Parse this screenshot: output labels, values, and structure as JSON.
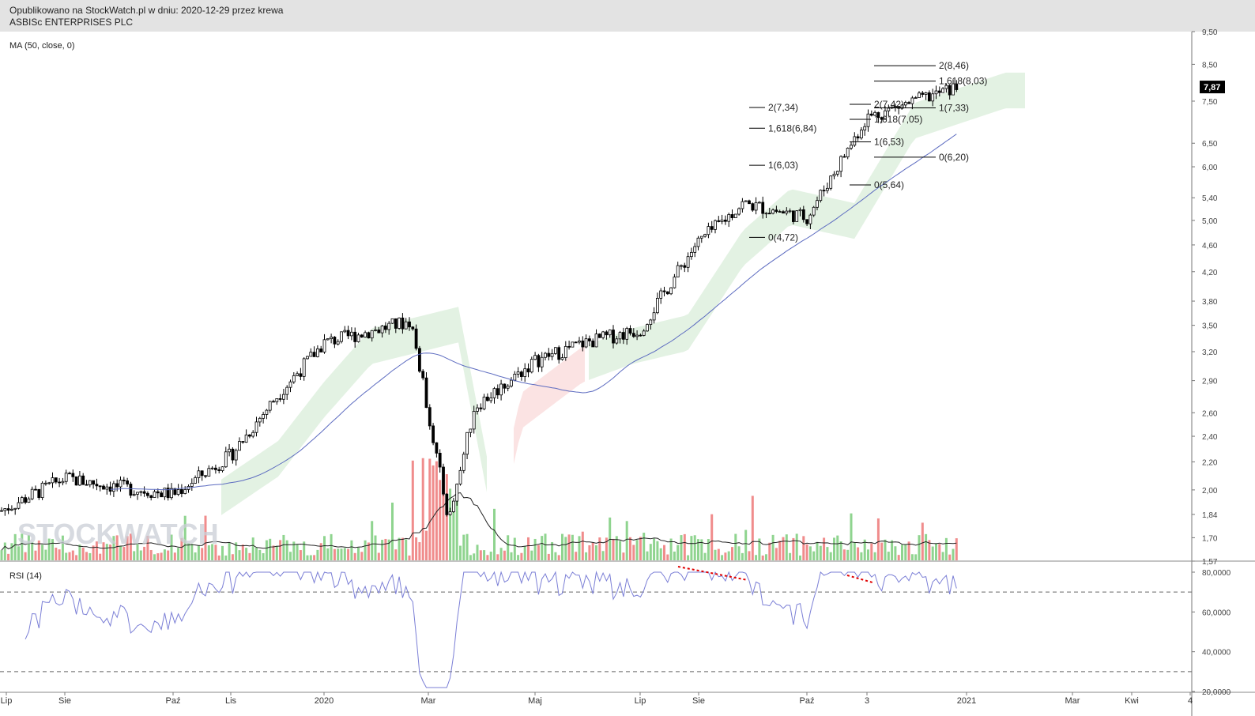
{
  "header": {
    "line1": "Opublikowano na StockWatch.pl w dniu: 2020-12-29 przez krewa",
    "line2": "ASBISc ENTERPRISES PLC"
  },
  "main": {
    "indicator_label": "MA (50, close, 0)"
  },
  "rsi": {
    "label": "RSI (14)"
  },
  "watermark": "STOCKWATCH",
  "last_price_badge": "7,87",
  "fib_labels": [
    "2(7,34)",
    "1,618(6,84)",
    "1(6,03)",
    "0(4,72)",
    "2(7,42)",
    "1,618(7,05)",
    "1(6,53)",
    "0(5,64)",
    "2(8,46)",
    "1,618(8,03)",
    "1(7,33)",
    "0(6,20)"
  ],
  "colors": {
    "up": "#4caf50",
    "down": "#000000",
    "ma": "#5c6bc0",
    "rsi": "#7b7fd6",
    "volume_up": "#8fd48f",
    "volume_down": "#f08c8c",
    "cloud_up": "#e3f2e3",
    "cloud_down": "#fbe3e3",
    "divergence": "#e00000"
  },
  "chart_data": {
    "type": "candlestick",
    "title": "ASBISc ENTERPRISES PLC",
    "price_axis": {
      "scale": "log",
      "ticks": [
        "9,50",
        "8,50",
        "7,50",
        "6,50",
        "6,00",
        "5,40",
        "5,00",
        "4,60",
        "4,20",
        "3,80",
        "3,50",
        "3,20",
        "2,90",
        "2,60",
        "2,40",
        "2,20",
        "2,00",
        "1,84",
        "1,70",
        "1,57"
      ]
    },
    "rsi_axis": {
      "ticks": [
        "80,0000",
        "60,0000",
        "40,0000",
        "20,0000"
      ],
      "levels": [
        70,
        30
      ]
    },
    "x_axis": {
      "ticks": [
        "Lip",
        "Sie",
        "Paź",
        "Lis",
        "2020",
        "Mar",
        "Maj",
        "Lip",
        "Sie",
        "Paź",
        "3",
        "2021",
        "Mar",
        "Kwi",
        "4"
      ]
    },
    "last_price": 7.87,
    "price_series": [
      [
        "2019-07",
        1.86
      ],
      [
        "2019-08",
        2.08
      ],
      [
        "2019-09",
        2.02
      ],
      [
        "2019-10",
        1.97
      ],
      [
        "2019-11",
        2.25
      ],
      [
        "2019-12",
        2.75
      ],
      [
        "2020-01",
        3.3
      ],
      [
        "2020-02",
        3.55
      ],
      [
        "2020-03",
        1.8
      ],
      [
        "2020-04",
        2.65
      ],
      [
        "2020-05",
        3.1
      ],
      [
        "2020-06",
        3.3
      ],
      [
        "2020-07",
        3.45
      ],
      [
        "2020-08",
        4.6
      ],
      [
        "2020-09",
        5.3
      ],
      [
        "2020-10",
        5.05
      ],
      [
        "2020-11",
        7.1
      ],
      [
        "2020-12",
        7.87
      ]
    ],
    "fibonacci": [
      {
        "levels": [
          [
            2,
            7.34
          ],
          [
            1.618,
            6.84
          ],
          [
            1,
            6.03
          ],
          [
            0,
            4.72
          ]
        ]
      },
      {
        "levels": [
          [
            2,
            7.42
          ],
          [
            1.618,
            7.05
          ],
          [
            1,
            6.53
          ],
          [
            0,
            5.64
          ]
        ]
      },
      {
        "levels": [
          [
            2,
            8.46
          ],
          [
            1.618,
            8.03
          ],
          [
            1,
            7.33
          ],
          [
            0,
            6.2
          ]
        ]
      }
    ],
    "ma_period": 50,
    "rsi_period": 14
  }
}
